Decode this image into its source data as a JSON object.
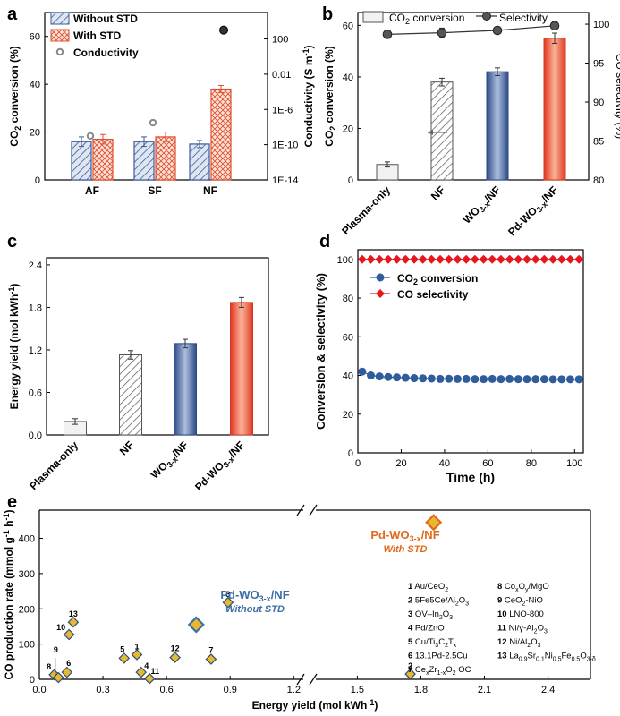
{
  "colors": {
    "blue": "#3d5a99",
    "orange": "#e0502e",
    "dark": "#222222",
    "gray": "#777777",
    "line_blue": "#2f5d9c",
    "red": "#e8151c",
    "gold": "#e8b830",
    "label_blue": "#3c6fa4",
    "label_orange": "#e06a1c"
  },
  "chart_data": [
    {
      "panel": "a",
      "type": "bar",
      "categories": [
        "AF",
        "SF",
        "NF"
      ],
      "series": [
        {
          "name": "Without STD",
          "values": [
            16,
            16,
            15
          ],
          "errors": [
            2,
            2,
            1.5
          ]
        },
        {
          "name": "With STD",
          "values": [
            17,
            18,
            38
          ],
          "errors": [
            2,
            2,
            1.5
          ]
        }
      ],
      "conductivity": {
        "name": "Conductivity",
        "values_log10": [
          -9,
          -7.5,
          3
        ],
        "unit": "S m-1"
      },
      "ylabel": "CO2 conversion (%)",
      "ylabel2": "Conductivity (S m-1)",
      "ylim": [
        0,
        70
      ],
      "yticks": [
        "0",
        "20",
        "40",
        "60"
      ],
      "y2lim_log10": [
        -14,
        5
      ],
      "y2ticks": [
        "100",
        "0.01",
        "1E-6",
        "1E-10",
        "1E-14"
      ]
    },
    {
      "panel": "b",
      "type": "bar",
      "categories": [
        "Plasma-only",
        "NF",
        "WO3-x/NF",
        "Pd-WO3-x/NF"
      ],
      "series": [
        {
          "name": "CO2 conversion",
          "values": [
            6,
            38,
            42,
            55
          ],
          "errors": [
            1,
            1.5,
            1.5,
            2
          ]
        },
        {
          "name": "Selectivity",
          "values": [
            98.7,
            98.9,
            99.2,
            99.8
          ],
          "errors": [
            0.5,
            0.6,
            0.4,
            0.5
          ]
        }
      ],
      "ylabel": "CO2 conversion (%)",
      "ylabel2": "CO selectivity (%)",
      "ylim": [
        0,
        65
      ],
      "yticks": [
        "0",
        "20",
        "40",
        "60"
      ],
      "y2lim": [
        80,
        101.5
      ],
      "y2ticks": [
        "80",
        "85",
        "90",
        "95",
        "100"
      ]
    },
    {
      "panel": "c",
      "type": "bar",
      "categories": [
        "Plasma-only",
        "NF",
        "WO3-x/NF",
        "Pd-WO3-x/NF"
      ],
      "values": [
        0.19,
        1.13,
        1.29,
        1.87
      ],
      "errors": [
        0.04,
        0.06,
        0.06,
        0.07
      ],
      "ylabel": "Energy yield (mol kWh-1)",
      "ylim": [
        0,
        2.5
      ],
      "yticks": [
        "0.0",
        "0.6",
        "1.2",
        "1.8",
        "2.4"
      ]
    },
    {
      "panel": "d",
      "type": "scatter",
      "xlabel": "Time (h)",
      "ylabel": "Conversion & selectivity (%)",
      "xlim": [
        0,
        104
      ],
      "ylim": [
        0,
        105
      ],
      "xticks": [
        "0",
        "20",
        "40",
        "60",
        "80",
        "100"
      ],
      "yticks": [
        "0",
        "20",
        "40",
        "60",
        "80",
        "100"
      ],
      "x": [
        2,
        6,
        10,
        14,
        18,
        22,
        26,
        30,
        34,
        38,
        42,
        46,
        50,
        54,
        58,
        62,
        66,
        70,
        74,
        78,
        82,
        86,
        90,
        94,
        98,
        102
      ],
      "series": [
        {
          "name": "CO2 conversion",
          "values": [
            42,
            40,
            39.5,
            39.2,
            39,
            38.8,
            38.6,
            38.5,
            38.4,
            38.2,
            38.3,
            38.2,
            38.2,
            38.1,
            38.1,
            38.2,
            38.1,
            38.2,
            38.1,
            38.1,
            38.1,
            38.1,
            38,
            38,
            38,
            38
          ]
        },
        {
          "name": "CO selectivity",
          "values": [
            100,
            100,
            100,
            100,
            100,
            100,
            100,
            100,
            100,
            100,
            100,
            100,
            100,
            100,
            100,
            100,
            100,
            100,
            100,
            100,
            100,
            100,
            100,
            100,
            100,
            100
          ]
        }
      ]
    },
    {
      "panel": "e",
      "type": "scatter",
      "xlabel": "Energy yield (mol kWh-1)",
      "ylabel": "CO production rate (mmol g-1 h-1)",
      "xlim": [
        0,
        2.6
      ],
      "ylim": [
        0,
        480
      ],
      "x_break": [
        0.95,
        1.55
      ],
      "xticks": [
        "0.0",
        "0.3",
        "0.6",
        "0.9",
        "1.2",
        "1.5",
        "1.8",
        "2.1",
        "2.4"
      ],
      "yticks": [
        "0",
        "100",
        "200",
        "300",
        "400"
      ],
      "points": [
        {
          "id": "1",
          "x": 0.46,
          "y": 70
        },
        {
          "id": "2",
          "x": 1.75,
          "y": 15
        },
        {
          "id": "3",
          "x": 0.89,
          "y": 218
        },
        {
          "id": "4",
          "x": 0.48,
          "y": 20
        },
        {
          "id": "5",
          "x": 0.4,
          "y": 60
        },
        {
          "id": "6",
          "x": 0.13,
          "y": 20
        },
        {
          "id": "7",
          "x": 0.81,
          "y": 57
        },
        {
          "id": "8",
          "x": 0.07,
          "y": 13
        },
        {
          "id": "9",
          "x": 0.09,
          "y": 5
        },
        {
          "id": "10",
          "x": 0.14,
          "y": 127
        },
        {
          "id": "11",
          "x": 0.52,
          "y": 2
        },
        {
          "id": "12",
          "x": 0.64,
          "y": 62
        },
        {
          "id": "13",
          "x": 0.16,
          "y": 162
        }
      ],
      "highlight": [
        {
          "x": 0.74,
          "y": 155,
          "label": "Pd-WO3-x/NF",
          "sublabel": "Without STD"
        },
        {
          "x": 1.86,
          "y": 445,
          "label": "Pd-WO3-x/NF",
          "sublabel": "With STD"
        }
      ],
      "legend": [
        "Au/CeO2",
        "5Fe5Ce/Al2O3",
        "OV-In2O3",
        "Pd/ZnO",
        "Cu/Ti3C2Tx",
        "13.1Pd-2.5Cu",
        "CexZr1-xO2 OC",
        "CoOx/MgO",
        "CeO2-NiO",
        "LNO-800",
        "Ni/γ-Al2O3",
        "Ni/Al2O3",
        "La0.9Sr0.1Ni0.5Fe0.5O3-δ"
      ]
    }
  ]
}
